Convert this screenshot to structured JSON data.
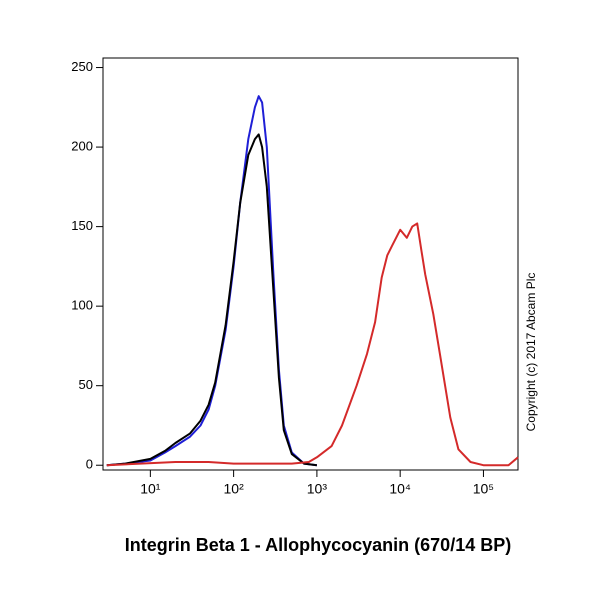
{
  "chart_data": {
    "type": "line",
    "xlabel": "Integrin Beta 1 - Allophycocyanin (670/14 BP)",
    "annotation": "Copyright (c) 2017 Abcam Plc",
    "log_x": true,
    "xlim": [
      2.7,
      260000
    ],
    "ylim": [
      -3,
      256
    ],
    "xticks": [
      {
        "value": 10,
        "label": "10¹"
      },
      {
        "value": 100,
        "label": "10²"
      },
      {
        "value": 1000,
        "label": "10³"
      },
      {
        "value": 10000,
        "label": "10⁴"
      },
      {
        "value": 100000,
        "label": "10⁵"
      }
    ],
    "yticks": [
      0,
      50,
      100,
      150,
      200,
      250
    ],
    "series": [
      {
        "color": "#1f1fd6",
        "x": [
          3,
          5,
          10,
          15,
          20,
          30,
          40,
          50,
          60,
          80,
          100,
          120,
          150,
          180,
          200,
          220,
          250,
          300,
          350,
          400,
          500,
          700,
          1000
        ],
        "values": [
          0,
          1,
          3,
          8,
          12,
          18,
          25,
          35,
          50,
          85,
          125,
          165,
          205,
          225,
          232,
          228,
          200,
          120,
          60,
          25,
          8,
          1,
          0
        ]
      },
      {
        "color": "#000000",
        "x": [
          3,
          5,
          10,
          15,
          20,
          30,
          40,
          50,
          60,
          80,
          100,
          120,
          150,
          180,
          200,
          220,
          250,
          300,
          350,
          400,
          500,
          700,
          1000
        ],
        "values": [
          0,
          1,
          4,
          9,
          14,
          20,
          28,
          38,
          52,
          88,
          128,
          165,
          195,
          205,
          208,
          200,
          175,
          110,
          55,
          22,
          7,
          1,
          0
        ]
      },
      {
        "color": "#d42a2a",
        "x": [
          3,
          20,
          50,
          100,
          200,
          500,
          800,
          1000,
          1500,
          2000,
          3000,
          4000,
          5000,
          6000,
          7000,
          8000,
          10000,
          12000,
          14000,
          16000,
          18000,
          20000,
          25000,
          30000,
          40000,
          50000,
          70000,
          100000,
          200000,
          260000
        ],
        "values": [
          0,
          2,
          2,
          1,
          1,
          1,
          2,
          5,
          12,
          25,
          50,
          70,
          90,
          118,
          132,
          138,
          148,
          143,
          150,
          152,
          135,
          120,
          95,
          70,
          30,
          10,
          2,
          0,
          0,
          5
        ]
      }
    ]
  }
}
